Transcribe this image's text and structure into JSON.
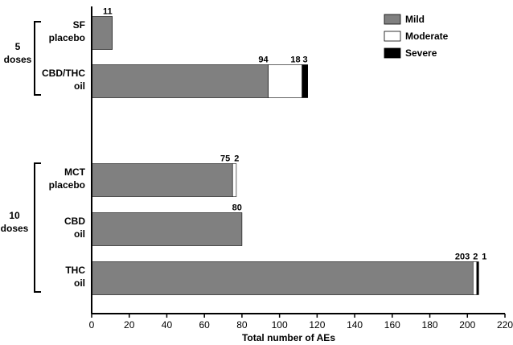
{
  "chart_data": {
    "type": "bar",
    "orientation": "horizontal",
    "stacked": true,
    "xlabel": "Total number of AEs",
    "xlim": [
      0,
      220
    ],
    "xticks": [
      0,
      20,
      40,
      60,
      80,
      100,
      120,
      140,
      160,
      180,
      200,
      220
    ],
    "grid": false,
    "legend_position": "top-right",
    "categories": [
      [
        "SF",
        "placebo"
      ],
      [
        "CBD/THC",
        "oil"
      ],
      [
        "MCT",
        "placebo"
      ],
      [
        "CBD",
        "oil"
      ],
      [
        "THC",
        "oil"
      ]
    ],
    "groups": [
      {
        "label": [
          "5",
          "doses"
        ],
        "categories": [
          0,
          1
        ]
      },
      {
        "label": [
          "10",
          "doses"
        ],
        "categories": [
          2,
          3,
          4
        ]
      }
    ],
    "series": [
      {
        "name": "Mild",
        "color": "#808080",
        "values": [
          11,
          94,
          75,
          80,
          203
        ]
      },
      {
        "name": "Moderate",
        "color": "#ffffff",
        "values": [
          0,
          18,
          2,
          0,
          2
        ]
      },
      {
        "name": "Severe",
        "color": "#000000",
        "values": [
          0,
          3,
          0,
          0,
          1
        ]
      }
    ],
    "data_labels": [
      [
        "11"
      ],
      [
        "94",
        "18",
        "3"
      ],
      [
        "75",
        "2"
      ],
      [
        "80"
      ],
      [
        "203",
        "2",
        "1"
      ]
    ]
  }
}
